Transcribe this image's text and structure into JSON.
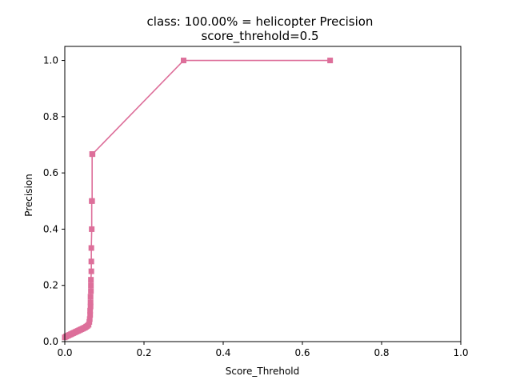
{
  "chart_data": {
    "type": "line",
    "title": "class: 100.00% = helicopter Precision",
    "subtitle": "score_threhold=0.5",
    "xlabel": "Score_Threhold",
    "ylabel": "Precision",
    "xlim": [
      0.0,
      1.0
    ],
    "ylim": [
      0.0,
      1.05
    ],
    "xticks": [
      "0.0",
      "0.2",
      "0.4",
      "0.6",
      "0.8",
      "1.0"
    ],
    "yticks": [
      "0.0",
      "0.2",
      "0.4",
      "0.6",
      "0.8",
      "1.0"
    ],
    "grid": false,
    "marker": "square",
    "color": "#dd6f9a",
    "series": [
      {
        "x": [
          0.0,
          0.003,
          0.006,
          0.009,
          0.012,
          0.015,
          0.018,
          0.021,
          0.024,
          0.027,
          0.03,
          0.033,
          0.036,
          0.039,
          0.042,
          0.045,
          0.048,
          0.051,
          0.054,
          0.057,
          0.06,
          0.062,
          0.063,
          0.064,
          0.064,
          0.065,
          0.065,
          0.065,
          0.066,
          0.066,
          0.066,
          0.067,
          0.067,
          0.067,
          0.068,
          0.068,
          0.069,
          0.069,
          0.07,
          0.3,
          0.67
        ],
        "y": [
          0.015,
          0.018,
          0.02,
          0.022,
          0.024,
          0.026,
          0.028,
          0.03,
          0.032,
          0.034,
          0.036,
          0.038,
          0.04,
          0.042,
          0.044,
          0.046,
          0.048,
          0.05,
          0.053,
          0.056,
          0.06,
          0.07,
          0.08,
          0.095,
          0.11,
          0.125,
          0.14,
          0.16,
          0.18,
          0.2,
          0.22,
          0.25,
          0.285,
          0.333,
          0.4,
          0.5,
          0.5,
          0.667,
          0.667,
          1.0,
          1.0
        ]
      }
    ]
  }
}
